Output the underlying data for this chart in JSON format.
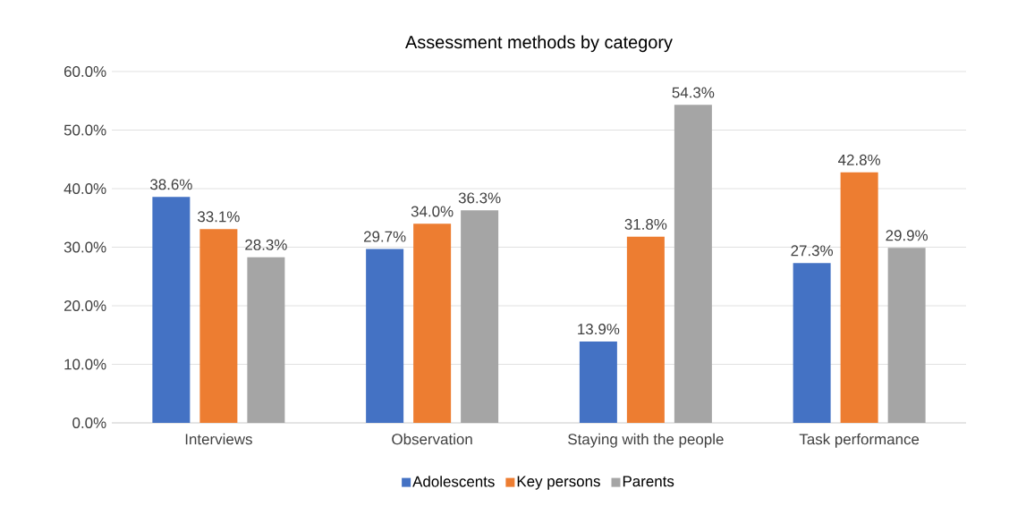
{
  "chart_data": {
    "type": "bar",
    "title": "Assessment methods by category",
    "categories": [
      "Interviews",
      "Observation",
      "Staying with the people",
      "Task performance"
    ],
    "series": [
      {
        "name": "Adolescents",
        "color": "#4472c4",
        "values": [
          38.6,
          29.7,
          13.9,
          27.3
        ],
        "value_labels": [
          "38.6%",
          "29.7%",
          "13.9%",
          "27.3%"
        ]
      },
      {
        "name": "Key persons",
        "color": "#ed7d31",
        "values": [
          33.1,
          34.0,
          31.8,
          42.8
        ],
        "value_labels": [
          "33.1%",
          "34.0%",
          "31.8%",
          "42.8%"
        ]
      },
      {
        "name": "Parents",
        "color": "#a5a5a5",
        "values": [
          28.3,
          36.3,
          54.3,
          29.9
        ],
        "value_labels": [
          "28.3%",
          "36.3%",
          "54.3%",
          "29.9%"
        ]
      }
    ],
    "ylim": [
      0,
      60
    ],
    "yticks": [
      {
        "value": 0,
        "label": "0.0%"
      },
      {
        "value": 10,
        "label": "10.0%"
      },
      {
        "value": 20,
        "label": "20.0%"
      },
      {
        "value": 30,
        "label": "30.0%"
      },
      {
        "value": 40,
        "label": "40.0%"
      },
      {
        "value": 50,
        "label": "50.0%"
      },
      {
        "value": 60,
        "label": "60.0%"
      }
    ],
    "grid": "y",
    "legend": "bottom"
  }
}
